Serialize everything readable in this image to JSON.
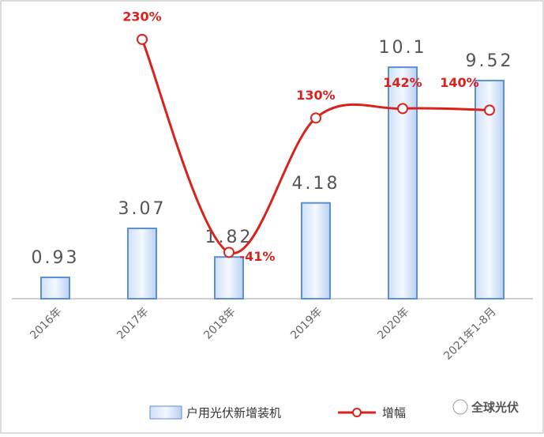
{
  "chart_data": {
    "type": "bar-line",
    "categories": [
      "2016年",
      "2017年",
      "2018年",
      "2019年",
      "2020年",
      "2021年1-8月"
    ],
    "series": [
      {
        "name": "户用光伏新增装机",
        "type": "bar",
        "color": "#5b8fd6",
        "values": [
          0.93,
          3.07,
          1.82,
          4.18,
          10.1,
          9.52
        ]
      },
      {
        "name": "增幅",
        "type": "line",
        "axis": "y2",
        "color": "#d9221c",
        "values": [
          null,
          230,
          -41,
          130,
          142,
          140
        ],
        "value_labels": [
          null,
          "230%",
          "-41%",
          "130%",
          "142%",
          "140%"
        ]
      }
    ],
    "ylim": [
      0,
      12
    ],
    "y2lim": [
      -100,
      250
    ],
    "legend": "bottom"
  },
  "watermark": "全球光伏"
}
